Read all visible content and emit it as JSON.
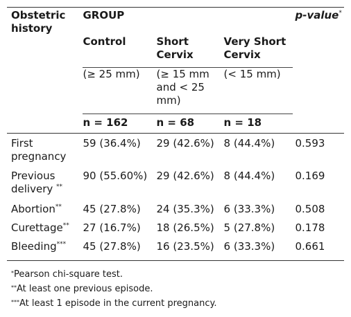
{
  "table": {
    "header": {
      "obstetric_history": "Obstetric history",
      "group": "GROUP",
      "p_value": "p-value",
      "p_value_mark": "*",
      "groups": [
        {
          "name": "Control",
          "range": "(≥ 25 mm)",
          "n": "n = 162"
        },
        {
          "name": "Short Cervix",
          "range": "(≥ 15 mm and < 25 mm)",
          "n": "n = 68"
        },
        {
          "name": "Very Short Cervix",
          "range": "(< 15 mm)",
          "n": "n = 18"
        }
      ]
    },
    "rows": [
      {
        "label": "First pregnancy",
        "mark": "",
        "control": "59 (36.4%)",
        "short": "29 (42.6%)",
        "very_short": "8 (44.4%)",
        "p": "0.593"
      },
      {
        "label": "Previous delivery",
        "mark": "**",
        "control": "90 (55.60%)",
        "short": "29 (42.6%)",
        "very_short": "8 (44.4%)",
        "p": "0.169"
      },
      {
        "label": "Abortion",
        "mark": "**",
        "control": "45 (27.8%)",
        "short": "24 (35.3%)",
        "very_short": "6 (33.3%)",
        "p": "0.508"
      },
      {
        "label": "Curettage",
        "mark": "**",
        "control": "27 (16.7%)",
        "short": "18 (26.5%)",
        "very_short": "5 (27.8%)",
        "p": "0.178"
      },
      {
        "label": "Bleeding",
        "mark": "***",
        "control": "45 (27.8%)",
        "short": "16 (23.5%)",
        "very_short": "6 (33.3%)",
        "p": "0.661"
      }
    ]
  },
  "footnotes": [
    {
      "mark": "*",
      "text": "Pearson chi-square test."
    },
    {
      "mark": "**",
      "text": "At least one previous episode."
    },
    {
      "mark": "***",
      "text": "At least 1 episode in the current pregnancy."
    }
  ]
}
